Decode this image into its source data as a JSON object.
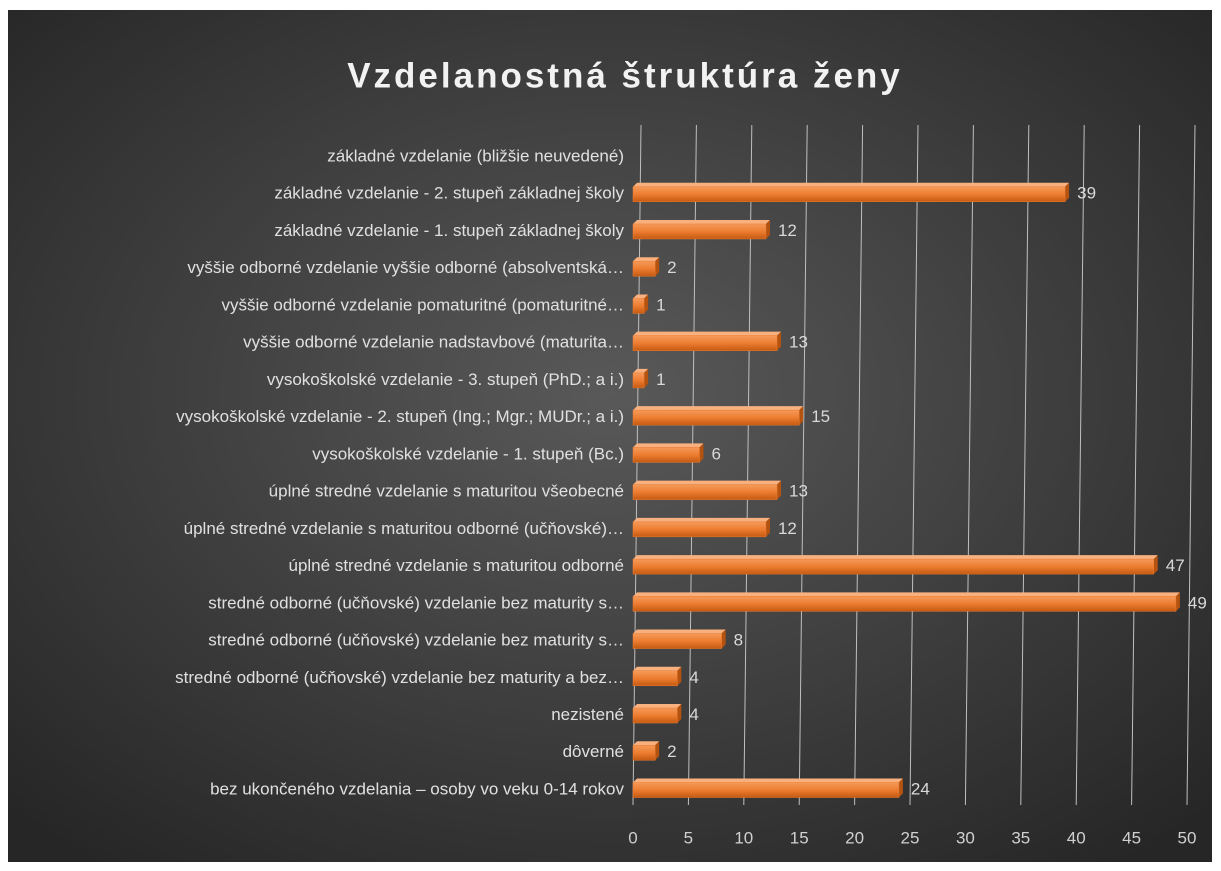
{
  "chart_data": {
    "type": "bar",
    "orientation": "horizontal",
    "title": "Vzdelanostná štruktúra ženy",
    "categories": [
      "základné vzdelanie (bližšie neuvedené)",
      "základné vzdelanie - 2. stupeň základnej školy",
      "základné vzdelanie - 1. stupeň základnej školy",
      "vyššie odborné vzdelanie vyššie odborné (absolventská…",
      "vyššie odborné vzdelanie pomaturitné (pomaturitné…",
      "vyššie odborné vzdelanie nadstavbové (maturita…",
      "vysokoškolské vzdelanie - 3. stupeň (PhD.; a i.)",
      "vysokoškolské vzdelanie - 2. stupeň (Ing.; Mgr.; MUDr.; a i.)",
      "vysokoškolské vzdelanie - 1. stupeň (Bc.)",
      "úplné stredné vzdelanie s maturitou všeobecné",
      "úplné stredné vzdelanie s maturitou odborné (učňovské)…",
      "úplné stredné vzdelanie s maturitou odborné",
      "stredné odborné (učňovské) vzdelanie bez maturity s…",
      "stredné odborné (učňovské) vzdelanie bez maturity s…",
      "stredné odborné (učňovské) vzdelanie bez maturity a bez…",
      "nezistené",
      "dôverné",
      "bez ukončeného vzdelania – osoby vo veku 0-14 rokov"
    ],
    "values": [
      null,
      39,
      12,
      2,
      1,
      13,
      1,
      15,
      6,
      13,
      12,
      47,
      49,
      8,
      4,
      4,
      2,
      24
    ],
    "color": "#ed7d31",
    "xlim": [
      0,
      50
    ],
    "xticks": [
      0,
      5,
      10,
      15,
      20,
      25,
      30,
      35,
      40,
      45,
      50
    ],
    "grid": true
  }
}
